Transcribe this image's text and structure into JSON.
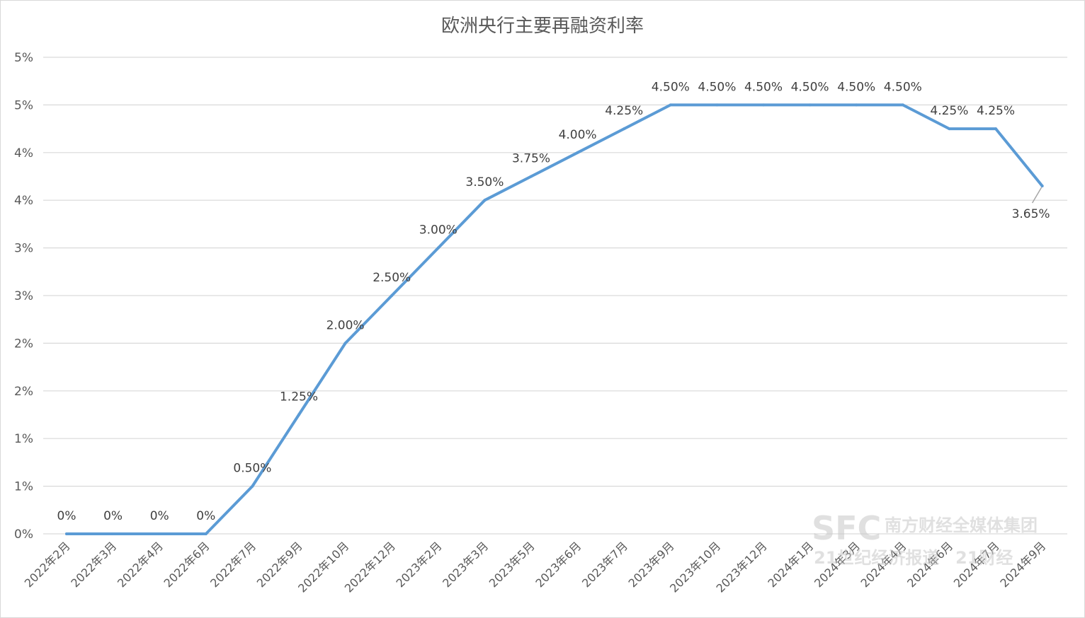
{
  "chart_data": {
    "type": "line",
    "title": "欧洲央行主要再融资利率",
    "xlabel": "",
    "ylabel": "",
    "ylim": [
      0,
      5
    ],
    "y_ticks": [
      {
        "value": 0,
        "label": "0%"
      },
      {
        "value": 0.5,
        "label": "1%"
      },
      {
        "value": 1,
        "label": "1%"
      },
      {
        "value": 1.5,
        "label": "2%"
      },
      {
        "value": 2,
        "label": "2%"
      },
      {
        "value": 2.5,
        "label": "3%"
      },
      {
        "value": 3,
        "label": "3%"
      },
      {
        "value": 3.5,
        "label": "4%"
      },
      {
        "value": 4,
        "label": "4%"
      },
      {
        "value": 4.5,
        "label": "5%"
      },
      {
        "value": 5,
        "label": "5%"
      }
    ],
    "grid": true,
    "categories": [
      "2022年2月",
      "2022年3月",
      "2022年4月",
      "2022年6月",
      "2022年7月",
      "2022年9月",
      "2022年10月",
      "2022年12月",
      "2023年2月",
      "2023年3月",
      "2023年5月",
      "2023年6月",
      "2023年7月",
      "2023年9月",
      "2023年10月",
      "2023年12月",
      "2024年1月",
      "2024年3月",
      "2024年4月",
      "2024年6月",
      "2024年7月",
      "2024年9月"
    ],
    "series": [
      {
        "color": "#5b9bd5",
        "values": [
          0,
          0,
          0,
          0,
          0.5,
          1.25,
          2.0,
          2.5,
          3.0,
          3.5,
          3.75,
          4.0,
          4.25,
          4.5,
          4.5,
          4.5,
          4.5,
          4.5,
          4.5,
          4.25,
          4.25,
          3.65
        ],
        "labels": [
          "0%",
          "0%",
          "0%",
          "0%",
          "0.50%",
          "1.25%",
          "2.00%",
          "2.50%",
          "3.00%",
          "3.50%",
          "3.75%",
          "4.00%",
          "4.25%",
          "4.50%",
          "4.50%",
          "4.50%",
          "4.50%",
          "4.50%",
          "4.50%",
          "4.25%",
          "4.25%",
          "3.65%"
        ]
      }
    ]
  },
  "watermark": {
    "logo_text": "SFC",
    "group_name": "南方财经全媒体集团",
    "channel_name": "21世纪经济报道",
    "brand_name": "21财经"
  }
}
